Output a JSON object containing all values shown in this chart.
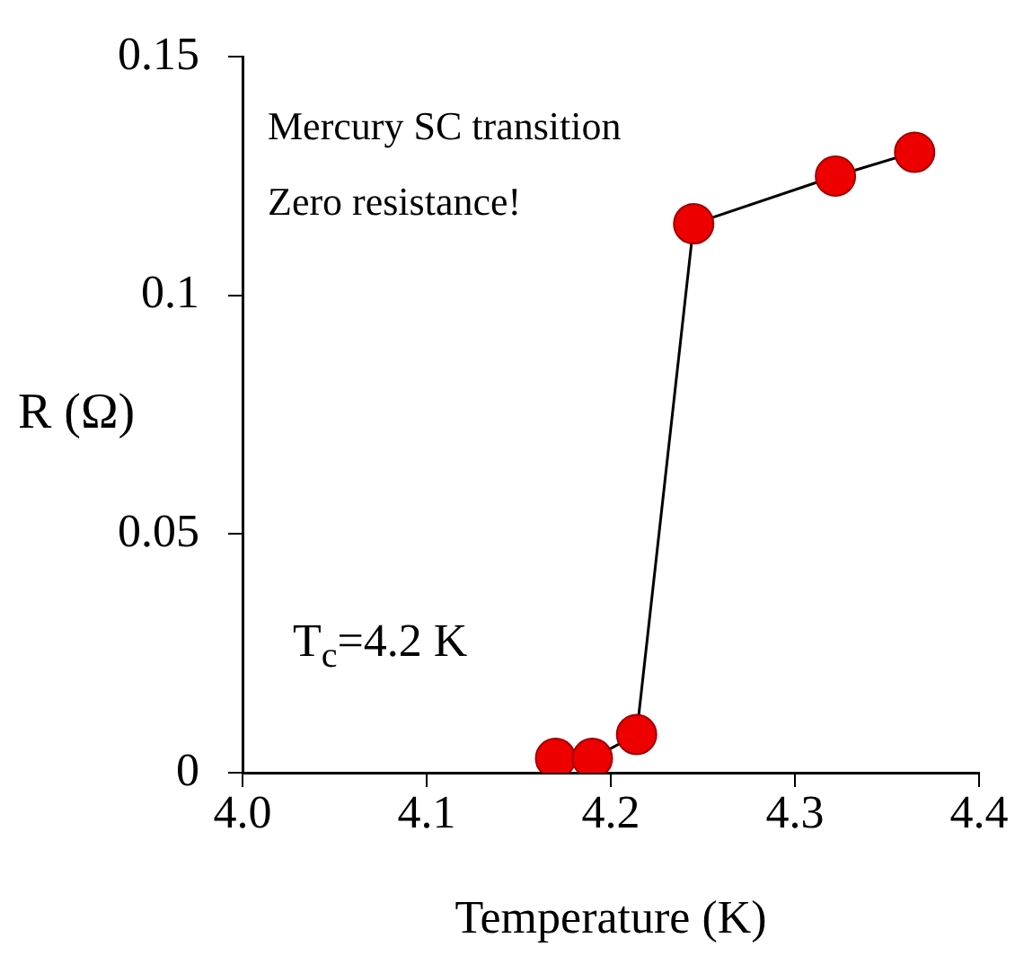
{
  "chart_data": {
    "type": "line",
    "xlabel": "Temperature (K)",
    "ylabel": "R (Ω)",
    "annotations": [
      "Mercury SC transition",
      "Zero resistance!",
      "T$_{c}$=4.2 K"
    ],
    "series": [
      {
        "x": [
          4.17,
          4.19,
          4.214,
          4.245,
          4.322,
          4.365
        ],
        "values": [
          0.003,
          0.003,
          0.008,
          0.115,
          0.125,
          0.13
        ],
        "color": "#ee0000"
      }
    ],
    "xlim": [
      4.0,
      4.4
    ],
    "xticks": [
      {
        "value": 4.0,
        "label": "4.0"
      },
      4.1,
      4.2,
      4.3,
      4.4
    ],
    "ylim": [
      0,
      0.15
    ],
    "yticks": [
      0,
      0.05,
      0.1,
      0.15
    ],
    "grid": false,
    "legend": false,
    "marker": "circle",
    "line_style": "solid"
  }
}
